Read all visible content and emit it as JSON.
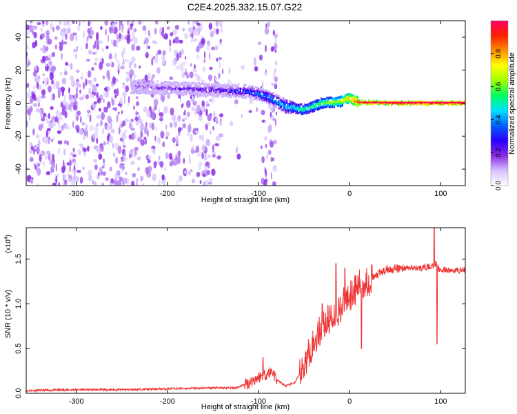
{
  "figure": {
    "title": "C2E4.2025.332.15.07.G22"
  },
  "colors": {
    "snr_line": "#ee3333",
    "axes": "#000000",
    "background": "#ffffff"
  },
  "chart_data": [
    {
      "type": "heatmap",
      "xlabel": "Height of straight line (km)",
      "ylabel": "Frequency (Hz)",
      "xlim": [
        -355,
        127
      ],
      "ylim": [
        -50,
        50
      ],
      "x_ticks": [
        -300,
        -200,
        -100,
        0,
        100
      ],
      "y_ticks": [
        -40,
        -20,
        0,
        20,
        40
      ],
      "colorbar": {
        "label": "Normalized spectral amplitude",
        "range": [
          0,
          1
        ],
        "ticks": [
          0.0,
          0.2,
          0.4,
          0.6,
          0.8
        ],
        "colormap": [
          "#ffffff",
          "#d6c2ff",
          "#8a2be2",
          "#2a00ff",
          "#0060ff",
          "#00e0ff",
          "#00ff60",
          "#a0ff00",
          "#ffff00",
          "#ff9000",
          "#ff2000",
          "#ff0060"
        ]
      },
      "ridge": {
        "description_points": [
          {
            "x": -235,
            "f": 10,
            "amp": 0.15
          },
          {
            "x": -200,
            "f": 9,
            "amp": 0.2
          },
          {
            "x": -150,
            "f": 8,
            "amp": 0.25
          },
          {
            "x": -110,
            "f": 7,
            "amp": 0.35
          },
          {
            "x": -90,
            "f": 4,
            "amp": 0.4
          },
          {
            "x": -70,
            "f": -2,
            "amp": 0.45
          },
          {
            "x": -50,
            "f": -4,
            "amp": 0.55
          },
          {
            "x": -30,
            "f": 0,
            "amp": 0.6
          },
          {
            "x": -10,
            "f": 1,
            "amp": 0.7
          },
          {
            "x": 0,
            "f": 3,
            "amp": 0.8
          },
          {
            "x": 10,
            "f": 0.5,
            "amp": 0.9
          },
          {
            "x": 50,
            "f": 0,
            "amp": 0.95
          },
          {
            "x": 90,
            "f": 0,
            "amp": 0.95
          },
          {
            "x": 125,
            "f": 0,
            "amp": 0.95
          }
        ]
      },
      "grid": false
    },
    {
      "type": "line",
      "y_scale_label": "(x10",
      "y_scale_exp": "4",
      "y_scale_close": ")",
      "xlabel": "Height of straight line (km)",
      "ylabel": "SNR (10 * v/v)",
      "xlim": [
        -355,
        127
      ],
      "ylim": [
        0,
        1.85
      ],
      "x_ticks": [
        -300,
        -200,
        -100,
        0,
        100
      ],
      "y_ticks": [
        "0.0",
        "0.5",
        "1.0",
        "1.5"
      ],
      "y_tick_values": [
        0,
        0.5,
        1.0,
        1.5
      ],
      "series": [
        {
          "points": [
            [
              -355,
              0.03
            ],
            [
              -300,
              0.04
            ],
            [
              -250,
              0.04
            ],
            [
              -200,
              0.05
            ],
            [
              -150,
              0.06
            ],
            [
              -125,
              0.06
            ],
            [
              -110,
              0.12
            ],
            [
              -100,
              0.18
            ],
            [
              -90,
              0.22
            ],
            [
              -85,
              0.25
            ],
            [
              -80,
              0.15
            ],
            [
              -70,
              0.08
            ],
            [
              -60,
              0.12
            ],
            [
              -50,
              0.3
            ],
            [
              -45,
              0.45
            ],
            [
              -40,
              0.55
            ],
            [
              -30,
              0.75
            ],
            [
              -20,
              0.85
            ],
            [
              -10,
              0.95
            ],
            [
              0,
              1.1
            ],
            [
              10,
              1.2
            ],
            [
              20,
              1.25
            ],
            [
              30,
              1.32
            ],
            [
              40,
              1.38
            ],
            [
              60,
              1.4
            ],
            [
              80,
              1.4
            ],
            [
              90,
              1.42
            ],
            [
              95,
              1.45
            ],
            [
              98,
              1.38
            ],
            [
              110,
              1.37
            ],
            [
              127,
              1.38
            ]
          ],
          "spikes": [
            [
              -15,
              1.45
            ],
            [
              -5,
              1.4
            ],
            [
              13,
              0.5
            ],
            [
              93,
              1.85
            ],
            [
              96,
              0.55
            ],
            [
              -95,
              0.4
            ],
            [
              -30,
              1.0
            ]
          ],
          "color": "#ee3333"
        }
      ],
      "grid": false
    }
  ]
}
